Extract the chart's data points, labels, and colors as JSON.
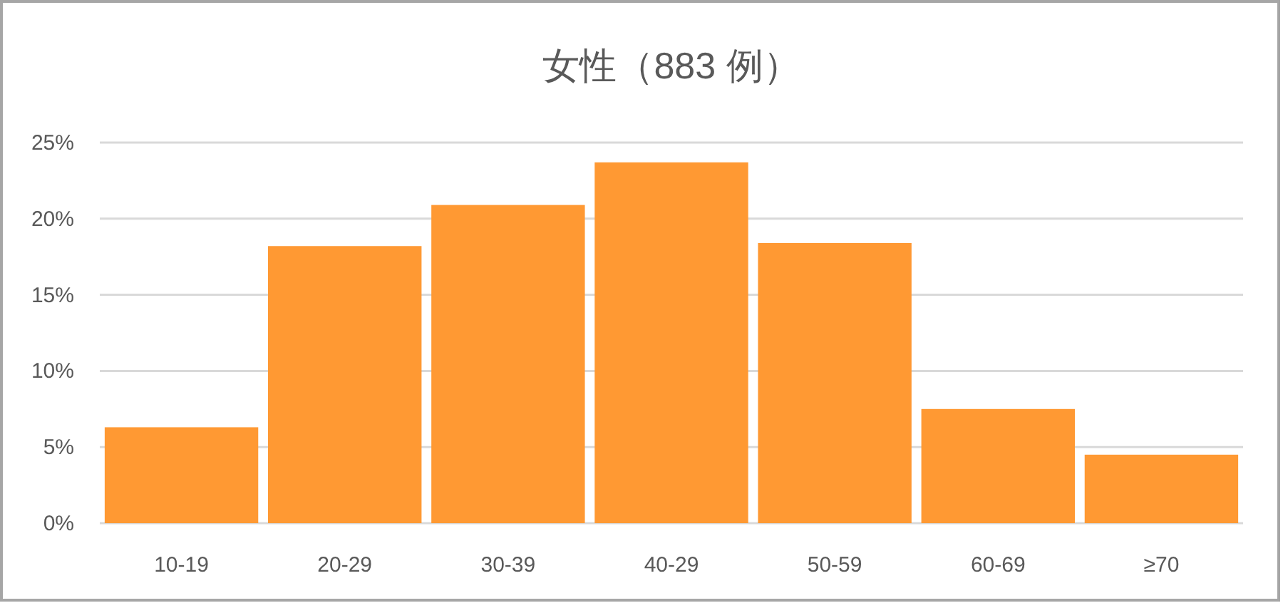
{
  "chart_data": {
    "type": "bar",
    "title": "女性（883 例）",
    "categories": [
      "10-19",
      "20-29",
      "30-39",
      "40-29",
      "50-59",
      "60-69",
      "≥70"
    ],
    "values": [
      6.3,
      18.2,
      20.9,
      23.7,
      18.4,
      7.5,
      4.5
    ],
    "color": "#ff9933",
    "ylim": [
      0,
      25
    ],
    "yticks": [
      {
        "value": 0,
        "label": "0%"
      },
      {
        "value": 5,
        "label": "5%"
      },
      {
        "value": 10,
        "label": "10%"
      },
      {
        "value": 15,
        "label": "15%"
      },
      {
        "value": 20,
        "label": "20%"
      },
      {
        "value": 25,
        "label": "25%"
      }
    ],
    "grid": "y"
  }
}
